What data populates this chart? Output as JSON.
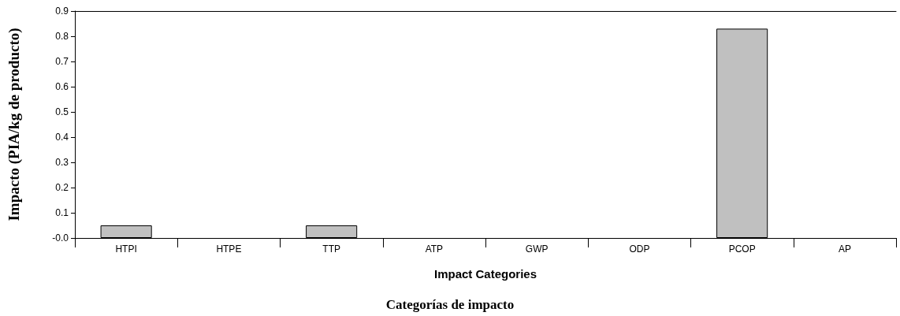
{
  "chart_data": {
    "type": "bar",
    "xlabel": "Impact Categories",
    "ylabel": "Impacto (PIA/kg de producto)",
    "annotations": [
      "Categorías de impacto"
    ],
    "categories": [
      "HTPI",
      "HTPE",
      "TTP",
      "ATP",
      "GWP",
      "ODP",
      "PCOP",
      "AP"
    ],
    "values": [
      0.05,
      0,
      0.05,
      0,
      0,
      0,
      0.83,
      0
    ],
    "color": "#c0c0c0",
    "ylim": [
      0,
      0.9
    ],
    "yticks": [
      {
        "value": 0,
        "label": "-0.0"
      },
      0.1,
      0.2,
      0.3,
      0.4,
      0.5,
      0.6,
      0.7,
      0.8,
      0.9
    ],
    "grid": false
  }
}
